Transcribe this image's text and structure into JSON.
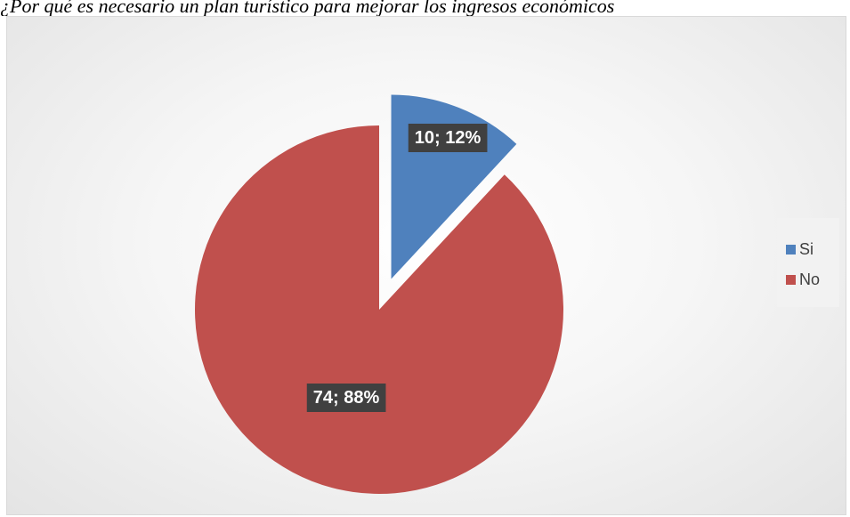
{
  "caption": "¿Por qué es necesario un plan turístico para mejorar los ingresos económicos",
  "chart_data": {
    "type": "pie",
    "categories": [
      "Si",
      "No"
    ],
    "values": [
      10,
      74
    ],
    "percentages": [
      "12%",
      "88%"
    ],
    "data_labels": [
      "10; 12%",
      "74; 88%"
    ],
    "colors": [
      "#4f81bd",
      "#c0504d"
    ],
    "exploded": "Si",
    "legend_position": "right"
  },
  "legend": {
    "items": [
      {
        "label": "Si",
        "color": "#4f81bd"
      },
      {
        "label": "No",
        "color": "#c0504d"
      }
    ]
  }
}
